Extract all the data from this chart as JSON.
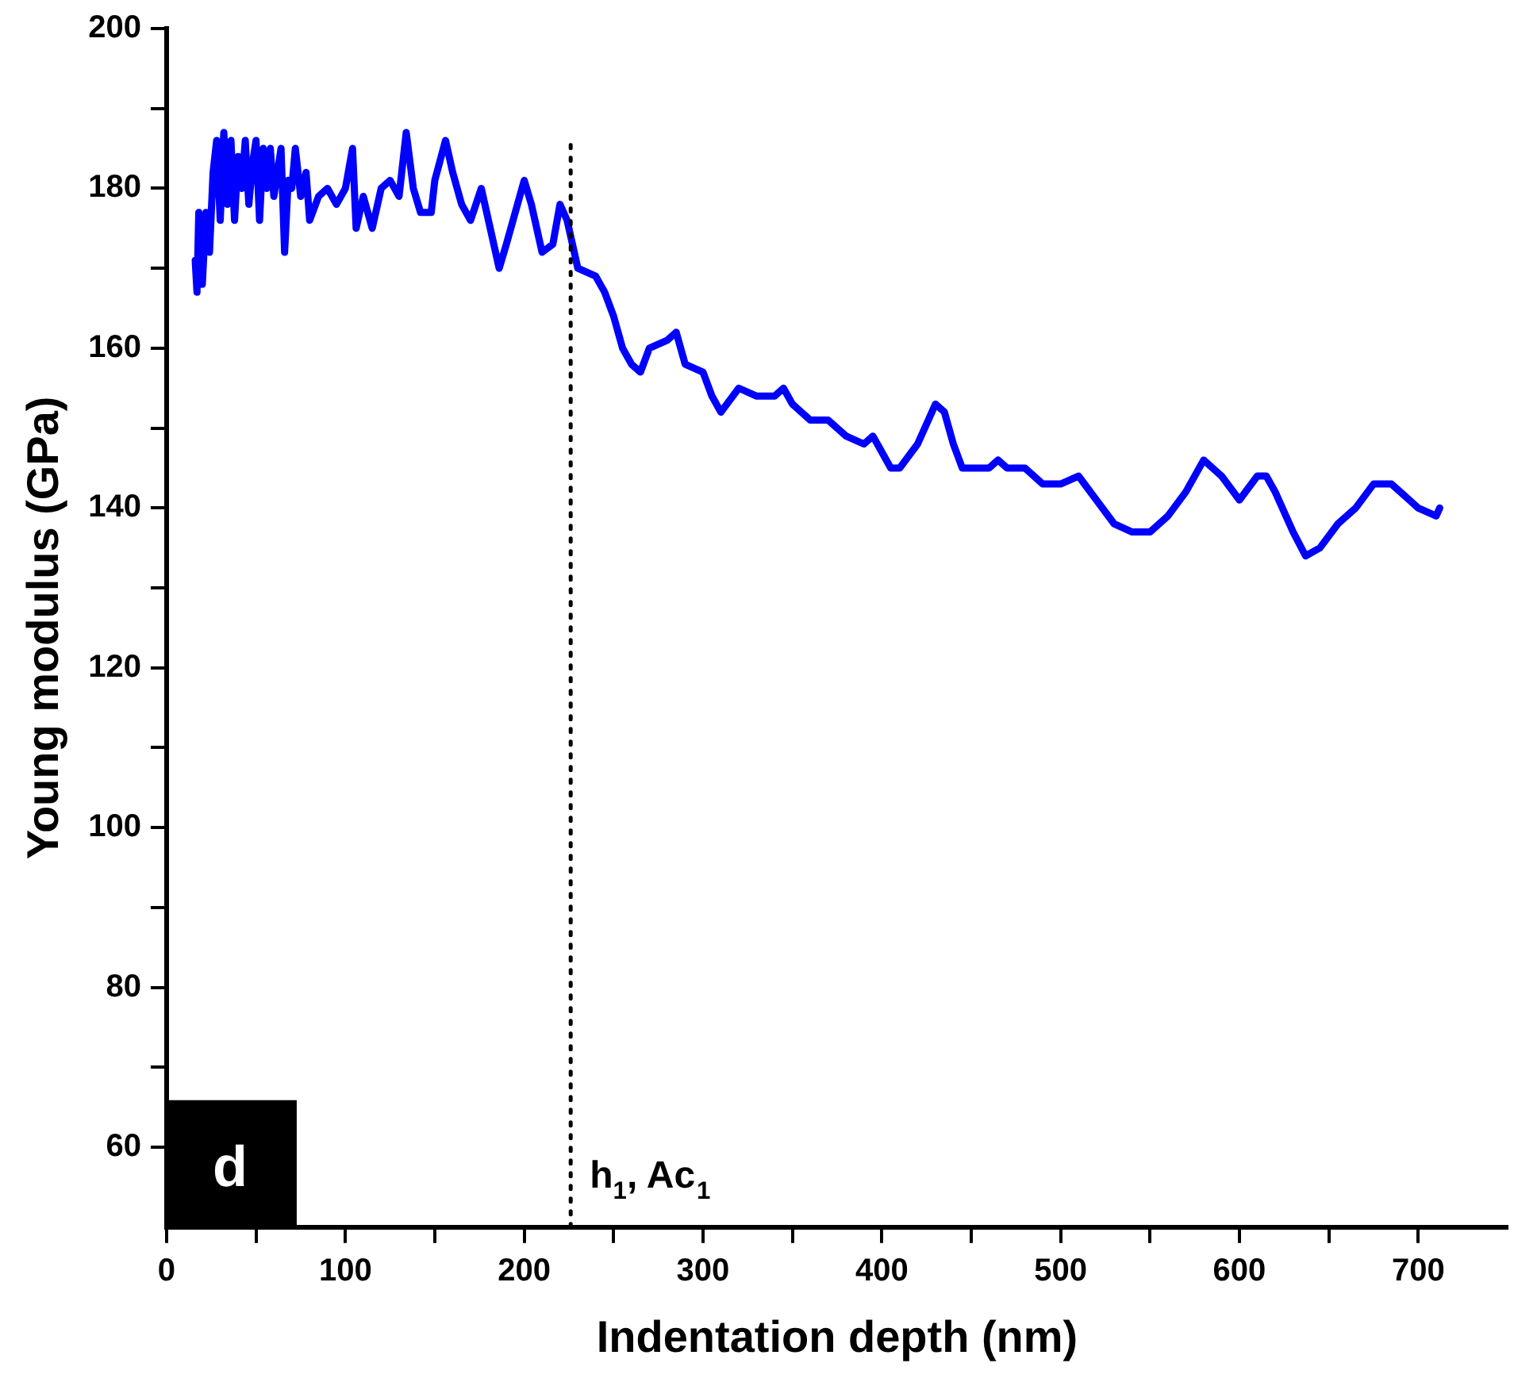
{
  "chart_data": {
    "type": "line",
    "xlabel": "Indentation depth (nm)",
    "ylabel": "Young modulus (GPa)",
    "xlim": [
      0,
      750
    ],
    "xticks": [
      0,
      {
        "value": 50,
        "label": null
      },
      100,
      {
        "value": 150,
        "label": null
      },
      200,
      {
        "value": 250,
        "label": null
      },
      300,
      {
        "value": 350,
        "label": null
      },
      400,
      {
        "value": 450,
        "label": null
      },
      500,
      {
        "value": 550,
        "label": null
      },
      600,
      {
        "value": 650,
        "label": null
      },
      700
    ],
    "ylim": [
      50,
      200
    ],
    "yticks": [
      60,
      {
        "value": 70,
        "label": null
      },
      80,
      {
        "value": 90,
        "label": null
      },
      100,
      {
        "value": 110,
        "label": null
      },
      120,
      {
        "value": 130,
        "label": null
      },
      140,
      {
        "value": 150,
        "label": null
      },
      160,
      {
        "value": 170,
        "label": null
      },
      180,
      {
        "value": 190,
        "label": null
      },
      200
    ],
    "grid": false,
    "legend": false,
    "marker": "none",
    "line_style": "solid",
    "annotations": [
      "d"
    ],
    "ref_lines": [
      {
        "axis": "x",
        "value": 226,
        "label": "h$_{1}$, Ac$_{1}$",
        "color": "#000000",
        "line_style": "dotted"
      }
    ],
    "series": [
      {
        "color": "#0000ff",
        "x": [
          16,
          17,
          18,
          20,
          22,
          24,
          26,
          28,
          30,
          32,
          34,
          36,
          38,
          40,
          42,
          44,
          46,
          48,
          50,
          52,
          54,
          56,
          58,
          60,
          62,
          64,
          66,
          68,
          70,
          72,
          75,
          78,
          80,
          85,
          90,
          95,
          100,
          104,
          106,
          110,
          115,
          120,
          125,
          130,
          134,
          138,
          142,
          148,
          150,
          156,
          160,
          165,
          170,
          176,
          180,
          186,
          190,
          200,
          204,
          210,
          216,
          220,
          224,
          230,
          240,
          245,
          250,
          255,
          260,
          265,
          270,
          280,
          285,
          290,
          300,
          305,
          310,
          320,
          330,
          340,
          345,
          350,
          360,
          370,
          380,
          390,
          395,
          400,
          405,
          410,
          420,
          430,
          435,
          440,
          445,
          460,
          465,
          470,
          480,
          490,
          500,
          510,
          520,
          530,
          540,
          550,
          560,
          570,
          580,
          590,
          600,
          610,
          615,
          620,
          630,
          637,
          645,
          655,
          665,
          675,
          685,
          690,
          700,
          710,
          712
        ],
        "values": [
          171,
          167,
          177,
          168,
          177,
          172,
          182,
          186,
          176,
          187,
          178,
          186,
          176,
          184,
          180,
          186,
          178,
          183,
          186,
          176,
          185,
          180,
          185,
          179,
          182,
          185,
          172,
          181,
          180,
          185,
          179,
          182,
          176,
          179,
          180,
          178,
          180,
          185,
          175,
          179,
          175,
          180,
          181,
          179,
          187,
          180,
          177,
          177,
          181,
          186,
          182,
          178,
          176,
          180,
          176,
          170,
          173,
          181,
          178,
          172,
          173,
          178,
          176,
          170,
          169,
          167,
          164,
          160,
          158,
          157,
          160,
          161,
          162,
          158,
          157,
          154,
          152,
          155,
          154,
          154,
          155,
          153,
          151,
          151,
          149,
          148,
          149,
          147,
          145,
          145,
          148,
          153,
          152,
          148,
          145,
          145,
          146,
          145,
          145,
          143,
          143,
          144,
          141,
          138,
          137,
          137,
          139,
          142,
          146,
          144,
          141,
          144,
          144,
          142,
          137,
          134,
          135,
          138,
          140,
          143,
          143,
          142,
          140,
          139,
          140
        ]
      }
    ]
  }
}
